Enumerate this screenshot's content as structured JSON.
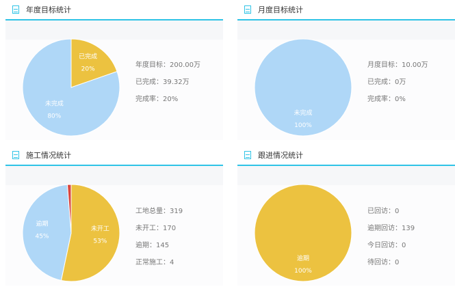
{
  "panels": [
    {
      "title": "年度目标统计",
      "stats": [
        "年度目标：200.00万",
        "已完成：39.32万",
        "完成率：20%"
      ],
      "chart_data": {
        "type": "pie",
        "slices": [
          {
            "name": "已完成",
            "value": 39.32,
            "label": "20%",
            "color": "#ecc240"
          },
          {
            "name": "未完成",
            "value": 160.68,
            "label": "80%",
            "color": "#afd7f7"
          }
        ]
      }
    },
    {
      "title": "月度目标统计",
      "stats": [
        "月度目标：10.00万",
        "已完成：0万",
        "完成率：0%"
      ],
      "chart_data": {
        "type": "pie",
        "slices": [
          {
            "name": "未完成",
            "value": 10,
            "label": "100%",
            "color": "#afd7f7"
          }
        ]
      }
    },
    {
      "title": "施工情况统计",
      "stats": [
        "工地总量：319",
        "未开工：170",
        "逾期：145",
        "正常施工：4"
      ],
      "chart_data": {
        "type": "pie",
        "slices": [
          {
            "name": "未开工",
            "value": 170,
            "label": "53%",
            "color": "#ecc240"
          },
          {
            "name": "逾期",
            "value": 145,
            "label": "45%",
            "color": "#afd7f7"
          },
          {
            "name": "正常施工",
            "value": 4,
            "label": "",
            "color": "#d9463f"
          }
        ]
      }
    },
    {
      "title": "跟进情况统计",
      "stats": [
        "已回访：0",
        "逾期回访：139",
        "今日回访：0",
        "待回访：0"
      ],
      "chart_data": {
        "type": "pie",
        "slices": [
          {
            "name": "逾期",
            "value": 139,
            "label": "100%",
            "color": "#ecc240"
          }
        ]
      }
    }
  ]
}
